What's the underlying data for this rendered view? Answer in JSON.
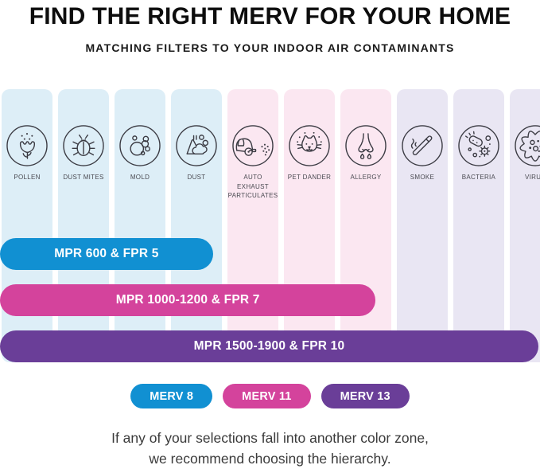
{
  "header": {
    "title": "FIND THE RIGHT MERV FOR YOUR HOME",
    "subtitle": "MATCHING FILTERS TO YOUR INDOOR AIR CONTAMINANTS"
  },
  "colors": {
    "blue": "#1190d2",
    "pink": "#d4439c",
    "purple": "#6a3e98",
    "column_blue": "#ddeef7",
    "column_pink": "#fbe7f1",
    "column_lavender": "#e9e6f3",
    "icon_stroke": "#3b3b43"
  },
  "columns": [
    {
      "label": "POLLEN",
      "icon": "pollen-icon",
      "group": "blue"
    },
    {
      "label": "DUST MITES",
      "icon": "dust-mites-icon",
      "group": "blue"
    },
    {
      "label": "MOLD",
      "icon": "mold-icon",
      "group": "blue"
    },
    {
      "label": "DUST",
      "icon": "dust-icon",
      "group": "blue"
    },
    {
      "label": "AUTO EXHAUST PARTICULATES",
      "icon": "auto-exhaust-icon",
      "group": "pink"
    },
    {
      "label": "PET DANDER",
      "icon": "pet-dander-icon",
      "group": "pink"
    },
    {
      "label": "ALLERGY",
      "icon": "allergy-icon",
      "group": "pink"
    },
    {
      "label": "SMOKE",
      "icon": "smoke-icon",
      "group": "lavender"
    },
    {
      "label": "BACTERIA",
      "icon": "bacteria-icon",
      "group": "lavender"
    },
    {
      "label": "VIRUS",
      "icon": "virus-icon",
      "group": "lavender"
    }
  ],
  "bars": [
    {
      "label": "MPR 600 & FPR 5",
      "color": "#1190d2",
      "span_columns": 4
    },
    {
      "label": "MPR 1000-1200 & FPR 7",
      "color": "#d4439c",
      "span_columns": 7
    },
    {
      "label": "MPR 1500-1900 & FPR 10",
      "color": "#6a3e98",
      "span_columns": 10
    }
  ],
  "merv_pills": [
    {
      "label": "MERV 8",
      "color": "#1190d2"
    },
    {
      "label": "MERV 11",
      "color": "#d4439c"
    },
    {
      "label": "MERV 13",
      "color": "#6a3e98"
    }
  ],
  "footer": {
    "line1": "If any of your selections fall into another color zone,",
    "line2": "we recommend choosing the hierarchy."
  }
}
